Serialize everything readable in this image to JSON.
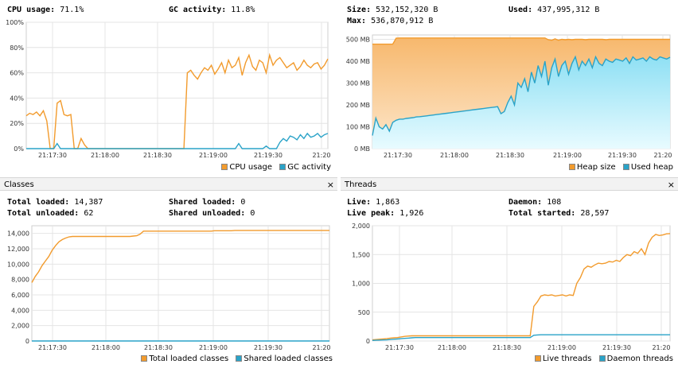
{
  "colors": {
    "orange": "#f29b2d",
    "blue": "#2aa3c8",
    "grid": "#e4e4e4"
  },
  "cpu": {
    "cpu_label": "CPU usage:",
    "cpu_value": "71.1%",
    "gc_label": "GC activity:",
    "gc_value": "11.8%",
    "legend": [
      "CPU usage",
      "GC activity"
    ]
  },
  "heap": {
    "size_label": "Size:",
    "size_value": "532,152,320 B",
    "used_label": "Used:",
    "used_value": "437,995,312 B",
    "max_label": "Max:",
    "max_value": "536,870,912 B",
    "legend": [
      "Heap size",
      "Used heap"
    ]
  },
  "classes": {
    "title": "Classes",
    "close": "×",
    "total_loaded_label": "Total loaded:",
    "total_loaded_value": "14,387",
    "total_unloaded_label": "Total unloaded:",
    "total_unloaded_value": "62",
    "shared_loaded_label": "Shared loaded:",
    "shared_loaded_value": "0",
    "shared_unloaded_label": "Shared unloaded:",
    "shared_unloaded_value": "0",
    "legend": [
      "Total loaded classes",
      "Shared loaded classes"
    ]
  },
  "threads": {
    "title": "Threads",
    "close": "×",
    "live_label": "Live:",
    "live_value": "1,863",
    "live_peak_label": "Live peak:",
    "live_peak_value": "1,926",
    "daemon_label": "Daemon:",
    "daemon_value": "108",
    "total_started_label": "Total started:",
    "total_started_value": "28,597",
    "legend": [
      "Live threads",
      "Daemon threads"
    ]
  },
  "chart_data": [
    {
      "type": "line",
      "x_ticks": [
        "21:17:30",
        "21:18:00",
        "21:18:30",
        "21:19:00",
        "21:19:30",
        "21:20"
      ],
      "y_ticks": [
        "0%",
        "20%",
        "40%",
        "60%",
        "80%",
        "100%"
      ],
      "ylim": [
        0,
        100
      ],
      "series": [
        {
          "name": "CPU usage",
          "values": [
            26,
            28,
            27,
            29,
            26,
            30,
            22,
            0,
            0,
            36,
            38,
            27,
            26,
            27,
            0,
            0,
            8,
            3,
            0,
            0,
            0,
            0,
            0,
            0,
            0,
            0,
            0,
            0,
            0,
            0,
            0,
            0,
            0,
            0,
            0,
            0,
            0,
            0,
            0,
            0,
            0,
            0,
            0,
            0,
            0,
            0,
            0,
            60,
            62,
            58,
            55,
            60,
            64,
            62,
            66,
            59,
            63,
            68,
            60,
            70,
            64,
            66,
            72,
            58,
            68,
            74,
            65,
            62,
            70,
            68,
            60,
            74,
            66,
            70,
            72,
            68,
            64,
            66,
            68,
            62,
            65,
            70,
            66,
            64,
            67,
            68,
            63,
            66,
            71
          ]
        },
        {
          "name": "GC activity",
          "values": [
            0,
            0,
            0,
            0,
            0,
            0,
            0,
            0,
            0,
            4,
            0,
            0,
            0,
            0,
            0,
            0,
            0,
            0,
            0,
            0,
            0,
            0,
            0,
            0,
            0,
            0,
            0,
            0,
            0,
            0,
            0,
            0,
            0,
            0,
            0,
            0,
            0,
            0,
            0,
            0,
            0,
            0,
            0,
            0,
            0,
            0,
            0,
            0,
            0,
            0,
            0,
            0,
            0,
            0,
            0,
            0,
            0,
            0,
            0,
            0,
            0,
            0,
            4,
            0,
            0,
            0,
            0,
            0,
            0,
            0,
            2,
            0,
            0,
            0,
            5,
            8,
            6,
            10,
            9,
            7,
            11,
            8,
            12,
            9,
            10,
            12,
            9,
            11,
            12
          ]
        }
      ]
    },
    {
      "type": "area",
      "x_ticks": [
        "21:17:30",
        "21:18:00",
        "21:18:30",
        "21:19:00",
        "21:19:30",
        "21:20"
      ],
      "y_ticks": [
        "0 MB",
        "100 MB",
        "200 MB",
        "300 MB",
        "400 MB",
        "500 MB"
      ],
      "ylim": [
        0,
        520
      ],
      "series": [
        {
          "name": "Heap size",
          "values": [
            478,
            478,
            478,
            478,
            478,
            478,
            478,
            505,
            506,
            506,
            506,
            506,
            506,
            506,
            506,
            506,
            506,
            506,
            506,
            506,
            506,
            506,
            506,
            506,
            506,
            506,
            506,
            506,
            506,
            506,
            506,
            506,
            506,
            506,
            506,
            506,
            506,
            506,
            506,
            506,
            506,
            506,
            506,
            506,
            506,
            506,
            506,
            506,
            506,
            506,
            506,
            506,
            498,
            496,
            502,
            496,
            500,
            498,
            500,
            498,
            500,
            500,
            500,
            498,
            500,
            500,
            500,
            500,
            500,
            498,
            500,
            500,
            500,
            500,
            500,
            500,
            500,
            500,
            500,
            500,
            500,
            500,
            500,
            500,
            500,
            500,
            500,
            500,
            500
          ]
        },
        {
          "name": "Used heap",
          "values": [
            60,
            140,
            100,
            90,
            110,
            80,
            120,
            130,
            135,
            135,
            138,
            140,
            142,
            145,
            146,
            148,
            150,
            152,
            154,
            156,
            158,
            160,
            162,
            164,
            166,
            168,
            170,
            172,
            174,
            176,
            178,
            180,
            182,
            184,
            186,
            188,
            190,
            192,
            160,
            170,
            210,
            240,
            200,
            300,
            280,
            320,
            260,
            350,
            300,
            380,
            330,
            400,
            290,
            370,
            410,
            330,
            380,
            400,
            340,
            390,
            420,
            360,
            400,
            380,
            410,
            370,
            420,
            390,
            380,
            410,
            400,
            395,
            410,
            405,
            400,
            415,
            390,
            420,
            405,
            410,
            415,
            400,
            420,
            410,
            405,
            420,
            415,
            410,
            418
          ]
        }
      ]
    },
    {
      "type": "line",
      "x_ticks": [
        "21:17:30",
        "21:18:00",
        "21:18:30",
        "21:19:00",
        "21:19:30",
        "21:20"
      ],
      "y_ticks": [
        "0",
        "2,000",
        "4,000",
        "6,000",
        "8,000",
        "10,000",
        "12,000",
        "14,000"
      ],
      "ylim": [
        0,
        15000
      ],
      "series": [
        {
          "name": "Total loaded classes",
          "values": [
            7600,
            8400,
            9000,
            9800,
            10400,
            11000,
            11800,
            12400,
            12900,
            13200,
            13400,
            13550,
            13600,
            13600,
            13600,
            13600,
            13600,
            13600,
            13600,
            13600,
            13600,
            13600,
            13600,
            13600,
            13600,
            13600,
            13600,
            13600,
            13600,
            13600,
            13650,
            13700,
            13900,
            14300,
            14300,
            14300,
            14300,
            14300,
            14300,
            14300,
            14300,
            14300,
            14300,
            14300,
            14300,
            14300,
            14300,
            14300,
            14300,
            14300,
            14300,
            14300,
            14300,
            14300,
            14350,
            14350,
            14350,
            14350,
            14350,
            14350,
            14387,
            14387,
            14387,
            14387,
            14387,
            14387,
            14387,
            14387,
            14387,
            14387,
            14387,
            14387,
            14387,
            14387,
            14387,
            14387,
            14387,
            14387,
            14387,
            14387,
            14387,
            14387,
            14387,
            14387,
            14387,
            14387,
            14387,
            14387,
            14387
          ]
        },
        {
          "name": "Shared loaded classes",
          "values": [
            0,
            0,
            0,
            0,
            0,
            0,
            0,
            0,
            0,
            0,
            0,
            0,
            0,
            0,
            0,
            0,
            0,
            0,
            0,
            0,
            0,
            0,
            0,
            0,
            0,
            0,
            0,
            0,
            0,
            0,
            0,
            0,
            0,
            0,
            0,
            0,
            0,
            0,
            0,
            0,
            0,
            0,
            0,
            0,
            0,
            0,
            0,
            0,
            0,
            0,
            0,
            0,
            0,
            0,
            0,
            0,
            0,
            0,
            0,
            0,
            0,
            0,
            0,
            0,
            0,
            0,
            0,
            0,
            0,
            0,
            0,
            0,
            0,
            0,
            0,
            0,
            0,
            0,
            0,
            0,
            0,
            0,
            0,
            0,
            0,
            0,
            0,
            0,
            0
          ]
        }
      ]
    },
    {
      "type": "line",
      "x_ticks": [
        "21:17:30",
        "21:18:00",
        "21:18:30",
        "21:19:00",
        "21:19:30",
        "21:20"
      ],
      "y_ticks": [
        "0",
        "500",
        "1,000",
        "1,500",
        "2,000"
      ],
      "ylim": [
        0,
        2000
      ],
      "series": [
        {
          "name": "Live threads",
          "values": [
            20,
            25,
            30,
            35,
            40,
            50,
            55,
            60,
            70,
            80,
            85,
            90,
            90,
            90,
            90,
            90,
            90,
            90,
            90,
            90,
            90,
            90,
            90,
            90,
            90,
            90,
            90,
            90,
            90,
            90,
            90,
            90,
            90,
            90,
            90,
            90,
            90,
            90,
            90,
            90,
            90,
            90,
            90,
            90,
            90,
            600,
            680,
            780,
            800,
            790,
            800,
            780,
            790,
            800,
            780,
            800,
            790,
            1000,
            1100,
            1250,
            1300,
            1280,
            1320,
            1350,
            1340,
            1350,
            1380,
            1370,
            1400,
            1380,
            1450,
            1500,
            1480,
            1550,
            1520,
            1600,
            1500,
            1700,
            1800,
            1850,
            1830,
            1840,
            1860,
            1863
          ]
        },
        {
          "name": "Daemon threads",
          "values": [
            10,
            12,
            15,
            18,
            20,
            25,
            30,
            35,
            40,
            45,
            50,
            55,
            60,
            60,
            60,
            60,
            60,
            60,
            60,
            60,
            60,
            60,
            60,
            60,
            60,
            60,
            60,
            60,
            60,
            60,
            60,
            60,
            60,
            60,
            60,
            60,
            60,
            60,
            60,
            60,
            60,
            60,
            60,
            60,
            60,
            100,
            105,
            108,
            108,
            108,
            108,
            108,
            108,
            108,
            108,
            108,
            108,
            108,
            108,
            108,
            108,
            108,
            108,
            108,
            108,
            108,
            108,
            108,
            108,
            108,
            108,
            108,
            108,
            108,
            108,
            108,
            108,
            108,
            108,
            108,
            108,
            108,
            108,
            108
          ]
        }
      ]
    }
  ]
}
